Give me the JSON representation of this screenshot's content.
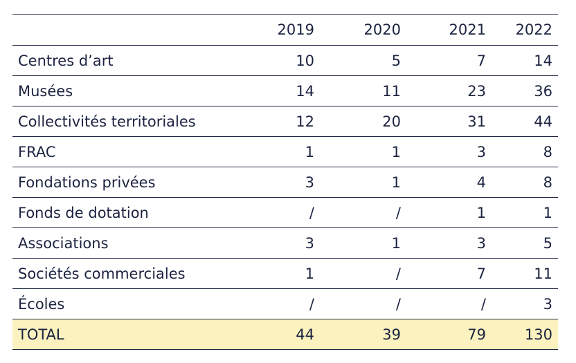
{
  "table": {
    "columns": [
      "",
      "2019",
      "2020",
      "2021",
      "2022"
    ],
    "rows": [
      {
        "label": "Centres d’art",
        "values": [
          "10",
          "5",
          "7",
          "14"
        ]
      },
      {
        "label": "Musées",
        "values": [
          "14",
          "11",
          "23",
          "36"
        ]
      },
      {
        "label": "Collectivités territoriales",
        "values": [
          "12",
          "20",
          "31",
          "44"
        ]
      },
      {
        "label": "FRAC",
        "values": [
          "1",
          "1",
          "3",
          "8"
        ]
      },
      {
        "label": "Fondations privées",
        "values": [
          "3",
          "1",
          "4",
          "8"
        ]
      },
      {
        "label": "Fonds de dotation",
        "values": [
          "/",
          "/",
          "1",
          "1"
        ]
      },
      {
        "label": "Associations",
        "values": [
          "3",
          "1",
          "3",
          "5"
        ]
      },
      {
        "label": "Sociétés commerciales",
        "values": [
          "1",
          "/",
          "7",
          "11"
        ]
      },
      {
        "label": "Écoles",
        "values": [
          "/",
          "/",
          "/",
          "3"
        ]
      }
    ],
    "total": {
      "label": "TOTAL",
      "values": [
        "44",
        "39",
        "79",
        "130"
      ]
    }
  },
  "colors": {
    "text": "#1b2340",
    "rule": "#1b2340",
    "total_background": "#fbf2bf"
  }
}
